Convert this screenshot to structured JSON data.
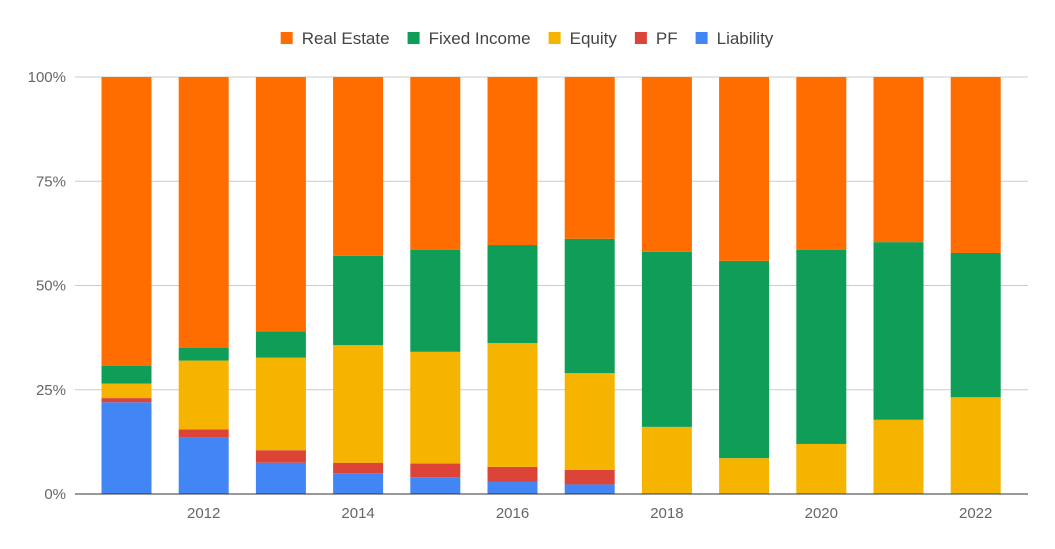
{
  "chart_data": {
    "type": "bar",
    "stacked": "percent",
    "categories": [
      "2011",
      "2012",
      "2013",
      "2014",
      "2015",
      "2016",
      "2017",
      "2018",
      "2019",
      "2020",
      "2021",
      "2022"
    ],
    "x_tick_labels": [
      "2012",
      "2014",
      "2016",
      "2018",
      "2020",
      "2022"
    ],
    "y_tick_labels": [
      "0%",
      "25%",
      "50%",
      "75%",
      "100%"
    ],
    "ylim": [
      0,
      100
    ],
    "grid": true,
    "legend_position": "top",
    "series": [
      {
        "name": "Liability",
        "color": "#4285f4",
        "values": [
          22.0,
          13.5,
          7.5,
          5.0,
          4.0,
          3.0,
          2.3,
          0,
          0,
          0,
          0,
          0
        ]
      },
      {
        "name": "PF",
        "color": "#db4437",
        "values": [
          1.0,
          2.0,
          3.0,
          2.5,
          3.3,
          3.5,
          3.5,
          0,
          0,
          0,
          0,
          0
        ]
      },
      {
        "name": "Equity",
        "color": "#f4b400",
        "values": [
          3.5,
          16.5,
          22.2,
          28.2,
          26.8,
          29.7,
          23.2,
          16.1,
          8.6,
          12.0,
          17.8,
          23.2
        ]
      },
      {
        "name": "Fixed Income",
        "color": "#0f9d58",
        "values": [
          4.2,
          3.1,
          6.3,
          21.4,
          24.5,
          23.5,
          32.2,
          42.0,
          47.3,
          46.6,
          42.6,
          34.6
        ]
      },
      {
        "name": "Real Estate",
        "color": "#ff6d01",
        "values": [
          69.3,
          64.9,
          61.0,
          42.9,
          41.4,
          40.3,
          38.8,
          41.9,
          44.1,
          41.4,
          39.6,
          42.2
        ]
      }
    ],
    "legend_order": [
      "Real Estate",
      "Fixed Income",
      "Equity",
      "PF",
      "Liability"
    ]
  }
}
